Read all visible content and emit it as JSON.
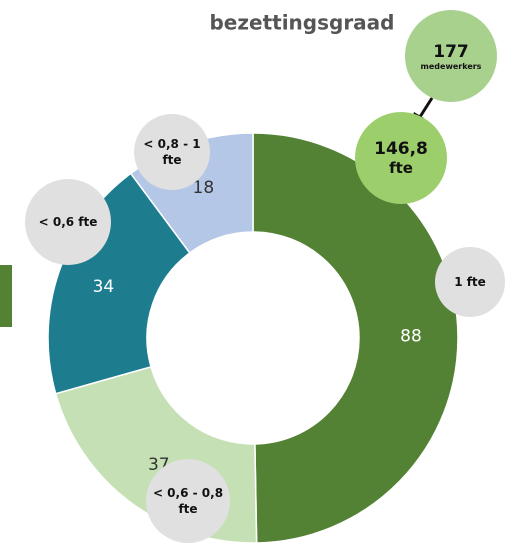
{
  "chart_data": {
    "type": "donut",
    "title": "bezettingsgraad",
    "categories": [
      "1 fte",
      "< 0,6 - 0,8 fte",
      "< 0,6 fte",
      "< 0,8 - 1 fte"
    ],
    "values": [
      88,
      37,
      34,
      18
    ],
    "colors": [
      "#548235",
      "#c5e0b4",
      "#1d7d8f",
      "#b4c7e7"
    ],
    "annotations": [
      {
        "text": "177",
        "subtext": "medewerkers"
      },
      {
        "text": "146,8",
        "subtext": "fte"
      }
    ]
  }
}
